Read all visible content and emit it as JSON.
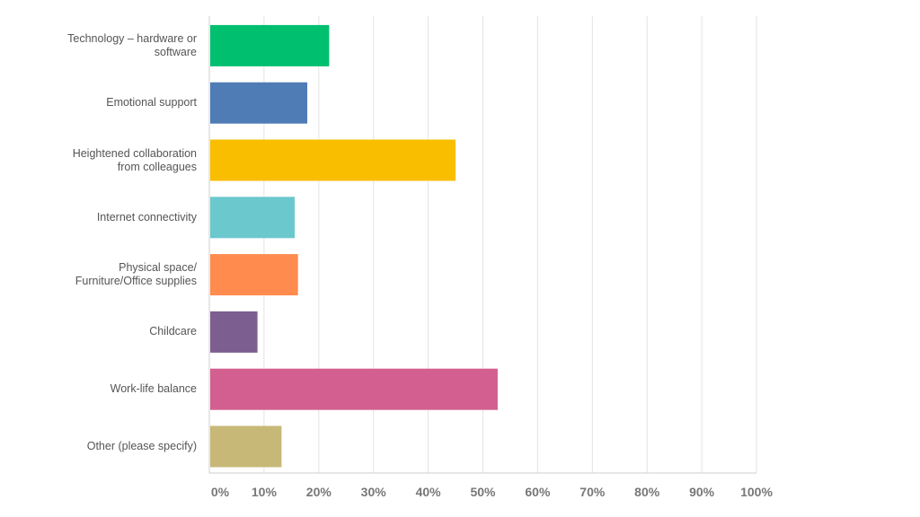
{
  "chart_data": {
    "type": "bar",
    "orientation": "horizontal",
    "title": "",
    "xlabel": "",
    "ylabel": "",
    "categories": [
      "Technology – hardware or\nsoftware",
      "Emotional support",
      "Heightened collaboration\nfrom colleagues",
      "Internet connectivity",
      "Physical space/\nFurniture/Office supplies",
      "Childcare",
      "Work-life balance",
      "Other (please specify)"
    ],
    "values": [
      21.9,
      17.9,
      45.0,
      15.6,
      16.2,
      8.8,
      52.7,
      13.2
    ],
    "colors": [
      "#00BF6F",
      "#507CB6",
      "#F9BE00",
      "#6BC8CD",
      "#FF8B4F",
      "#7D5E90",
      "#D25F90",
      "#C8B878"
    ],
    "xlim": [
      0,
      100
    ],
    "x_ticks": [
      "0%",
      "10%",
      "20%",
      "30%",
      "40%",
      "50%",
      "60%",
      "70%",
      "80%",
      "90%",
      "100%"
    ],
    "grid": true,
    "legend": "none"
  }
}
